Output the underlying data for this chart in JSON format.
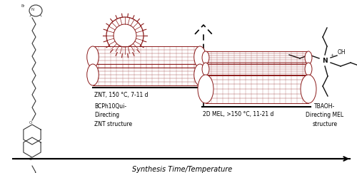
{
  "bg_color": "#ffffff",
  "xlabel": "Synthesis Time/Temperature",
  "znt_label1": "ZNT, 150 °C, 7-11 d",
  "znt_label2": "BCPh10Qui-\nDirecting\nZNT structure",
  "mel_label": "2D MEL, >150 °C, 11-21 d",
  "tbaoh_label": "TBAOH-\nDirecting MEL\nstructure",
  "dark_red": "#8B1a1a",
  "line_color": "#000000",
  "fig_w": 5.0,
  "fig_h": 2.43,
  "dpi": 100
}
